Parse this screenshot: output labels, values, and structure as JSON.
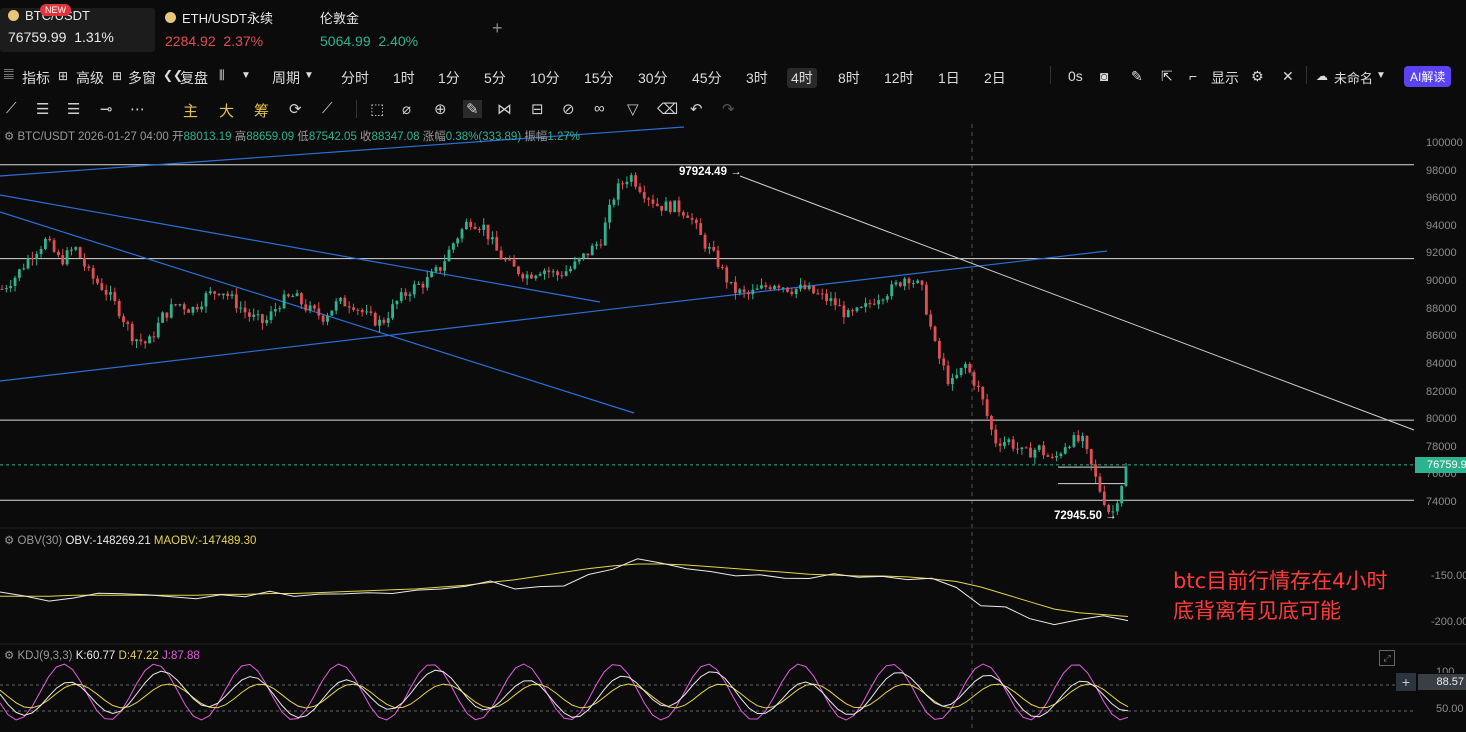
{
  "tickers": [
    {
      "name": "BTC/USDT",
      "price": "76759.99",
      "change": "1.31%",
      "badge": "NEW"
    },
    {
      "name": "ETH/USDT永续",
      "price": "2284.92",
      "change": "2.37%"
    },
    {
      "name": "伦敦金",
      "price": "5064.99",
      "change": "2.40%"
    }
  ],
  "add_tab_label": "+",
  "toolbar": {
    "indicators": "指标",
    "advanced": "高级",
    "multi_window": "多窗",
    "replay": "复盘",
    "period": "周期",
    "intervals": [
      "分时",
      "1时",
      "1分",
      "5分",
      "10分",
      "15分",
      "30分",
      "45分",
      "3时",
      "4时",
      "8时",
      "12时",
      "1日",
      "2日"
    ],
    "active_interval": "4时",
    "time_offset": "0s",
    "display": "显示",
    "layout_name": "未命名",
    "ai_label": "AI解读"
  },
  "draw_tools": {
    "main": "主",
    "big": "大",
    "chips": "筹"
  },
  "ohlc_bar": {
    "symbol": "BTC/USDT",
    "time": "2026-01-27 04:00",
    "open_label": "开",
    "open": "88013.19",
    "high_label": "高",
    "high": "88659.09",
    "low_label": "低",
    "low": "87542.05",
    "close_label": "收",
    "close": "88347.08",
    "change_label": "涨幅",
    "change": "0.38%(333.89)",
    "amplitude_label": "振幅",
    "amplitude": "1.27%"
  },
  "obv_bar": {
    "name": "OBV(30)",
    "obv": "OBV:-148269.21",
    "maobv": "MAOBV:-147489.30"
  },
  "kdj_bar": {
    "name": "KDJ(9,3,3)",
    "k": "K:60.77",
    "d": "D:47.22",
    "j": "J:87.88"
  },
  "chart_data": [
    {
      "type": "candlestick",
      "symbol": "BTC/USDT",
      "interval": "4时",
      "ylim": [
        72000,
        101000
      ],
      "y_ticks": [
        100000,
        98000,
        96000,
        94000,
        92000,
        90000,
        88000,
        86000,
        84000,
        82000,
        80000,
        78000,
        76000,
        74000
      ],
      "approx_close_path": [
        89500,
        90500,
        92000,
        93000,
        91500,
        92500,
        90500,
        89500,
        88000,
        86000,
        85500,
        87500,
        88500,
        88000,
        89000,
        89500,
        88500,
        87500,
        87000,
        88500,
        89000,
        88000,
        87500,
        88500,
        88500,
        87500,
        87000,
        88500,
        89500,
        90000,
        91000,
        93000,
        94500,
        94000,
        92000,
        91000,
        90500,
        91000,
        90500,
        91000,
        92000,
        93000,
        96500,
        97800,
        96500,
        95500,
        95500,
        95000,
        93000,
        91500,
        89500,
        89000,
        89500,
        90000,
        89500,
        89500,
        89000,
        88500,
        87500,
        88000,
        89000,
        89500,
        90500,
        89500,
        85000,
        82500,
        84000,
        82000,
        78500,
        78500,
        77500,
        78000,
        77000,
        78500,
        78500,
        75500,
        73000,
        76500
      ],
      "last_price": "76759.99",
      "high_marker": "97924.49",
      "low_marker": "72945.50",
      "horizontal_levels": [
        98500,
        91700,
        80000,
        74200,
        76600,
        75400
      ],
      "annotation": "btc目前行情存在4小时\n底背离有见底可能"
    },
    {
      "type": "line",
      "name": "OBV(30)",
      "y_ticks": [
        "-150.00",
        "-200.00"
      ],
      "series": [
        "OBV",
        "MAOBV"
      ]
    },
    {
      "type": "line",
      "name": "KDJ(9,3,3)",
      "y_ticks": [
        "100",
        "50.00"
      ],
      "current_label": "88.57",
      "series": [
        "K",
        "D",
        "J"
      ]
    }
  ],
  "colors": {
    "up": "#2fb38f",
    "down": "#e04f55",
    "trend": "#2b6fd6",
    "accent": "#5b43f1"
  }
}
